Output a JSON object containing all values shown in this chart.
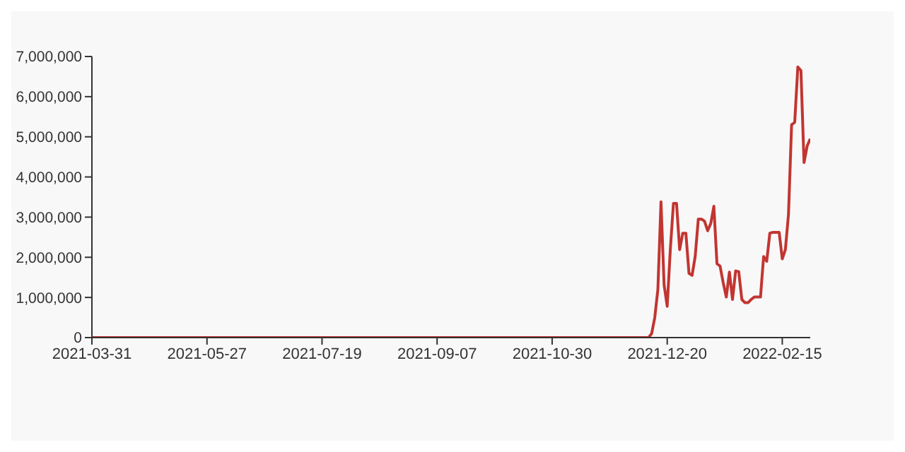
{
  "chart_data": {
    "type": "line",
    "color": "#c23531",
    "grid": false,
    "categories": [
      "2021-03-31",
      null,
      null,
      null,
      null,
      null,
      null,
      null,
      null,
      null,
      null,
      null,
      null,
      null,
      null,
      null,
      null,
      null,
      null,
      null,
      null,
      null,
      null,
      null,
      null,
      null,
      null,
      null,
      null,
      null,
      null,
      null,
      null,
      null,
      null,
      null,
      null,
      "2021-05-27",
      null,
      null,
      null,
      null,
      null,
      null,
      null,
      null,
      null,
      null,
      null,
      null,
      null,
      null,
      null,
      null,
      null,
      null,
      null,
      null,
      null,
      null,
      null,
      null,
      null,
      null,
      null,
      null,
      null,
      null,
      null,
      null,
      null,
      null,
      null,
      null,
      "2021-07-19",
      null,
      null,
      null,
      null,
      null,
      null,
      null,
      null,
      null,
      null,
      null,
      null,
      null,
      null,
      null,
      null,
      null,
      null,
      null,
      null,
      null,
      null,
      null,
      null,
      null,
      null,
      null,
      null,
      null,
      null,
      null,
      null,
      null,
      null,
      null,
      null,
      "2021-09-07",
      null,
      null,
      null,
      null,
      null,
      null,
      null,
      null,
      null,
      null,
      null,
      null,
      null,
      null,
      null,
      null,
      null,
      null,
      null,
      null,
      null,
      null,
      null,
      null,
      null,
      null,
      null,
      null,
      null,
      null,
      null,
      null,
      null,
      null,
      null,
      null,
      "2021-10-30",
      null,
      null,
      null,
      null,
      null,
      null,
      null,
      null,
      null,
      null,
      null,
      null,
      null,
      null,
      null,
      null,
      null,
      null,
      null,
      null,
      null,
      null,
      null,
      null,
      null,
      null,
      null,
      null,
      null,
      null,
      null,
      null,
      null,
      null,
      null,
      null,
      "2021-12-20",
      null,
      null,
      null,
      null,
      null,
      null,
      null,
      null,
      null,
      null,
      null,
      null,
      null,
      null,
      null,
      null,
      null,
      null,
      null,
      null,
      null,
      null,
      null,
      null,
      null,
      null,
      null,
      null,
      null,
      null,
      null,
      null,
      null,
      null,
      null,
      null,
      "2022-02-15",
      null,
      null,
      null,
      null,
      null,
      null,
      null,
      null,
      null
    ],
    "values": [
      0,
      0,
      0,
      0,
      0,
      0,
      0,
      0,
      0,
      0,
      0,
      0,
      0,
      0,
      0,
      0,
      0,
      0,
      0,
      0,
      0,
      0,
      0,
      0,
      0,
      0,
      0,
      0,
      0,
      0,
      0,
      0,
      0,
      0,
      0,
      0,
      0,
      0,
      0,
      0,
      0,
      0,
      0,
      0,
      0,
      0,
      0,
      0,
      0,
      0,
      0,
      0,
      0,
      0,
      0,
      0,
      0,
      0,
      0,
      0,
      0,
      0,
      0,
      0,
      0,
      0,
      0,
      0,
      0,
      0,
      0,
      0,
      0,
      0,
      0,
      0,
      0,
      0,
      0,
      0,
      0,
      0,
      0,
      0,
      0,
      0,
      0,
      0,
      0,
      0,
      0,
      0,
      0,
      0,
      0,
      0,
      0,
      0,
      0,
      0,
      0,
      0,
      0,
      0,
      0,
      0,
      0,
      0,
      0,
      0,
      0,
      0,
      0,
      0,
      0,
      0,
      0,
      0,
      0,
      0,
      0,
      0,
      0,
      0,
      0,
      0,
      0,
      0,
      0,
      0,
      0,
      0,
      0,
      0,
      0,
      0,
      0,
      0,
      0,
      0,
      0,
      0,
      0,
      0,
      0,
      0,
      0,
      0,
      0,
      0,
      0,
      0,
      0,
      0,
      0,
      0,
      0,
      0,
      0,
      0,
      0,
      0,
      0,
      0,
      0,
      0,
      0,
      0,
      0,
      0,
      0,
      0,
      0,
      0,
      0,
      0,
      0,
      0,
      0,
      0,
      100000,
      500000,
      1200000,
      3380000,
      1310000,
      780000,
      2190000,
      3340000,
      3340000,
      2190000,
      2600000,
      2600000,
      1600000,
      1550000,
      2020000,
      2950000,
      2950000,
      2900000,
      2660000,
      2840000,
      3270000,
      1840000,
      1780000,
      1370000,
      1010000,
      1630000,
      950000,
      1660000,
      1640000,
      950000,
      870000,
      870000,
      950000,
      1010000,
      1010000,
      1010000,
      2020000,
      1900000,
      2600000,
      2620000,
      2620000,
      2620000,
      1960000,
      2190000,
      3070000,
      5300000,
      5360000,
      6740000,
      6650000,
      4360000,
      4770000,
      4950000
    ],
    "ylim": [
      0,
      7000000
    ],
    "yticks": [
      0,
      {
        "value": 1000000,
        "label": "1,000,000"
      },
      {
        "value": 2000000,
        "label": "2,000,000"
      },
      {
        "value": 3000000,
        "label": "3,000,000"
      },
      {
        "value": 4000000,
        "label": "4,000,000"
      },
      {
        "value": 5000000,
        "label": "5,000,000"
      },
      {
        "value": 6000000,
        "label": "6,000,000"
      },
      {
        "value": 7000000,
        "label": "7,000,000"
      }
    ]
  }
}
